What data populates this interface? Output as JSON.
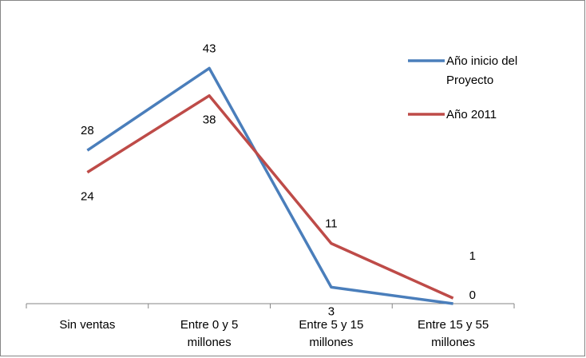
{
  "chart_data": {
    "type": "line",
    "title": "",
    "xlabel": "",
    "ylabel": "",
    "categories": [
      [
        "Sin ventas"
      ],
      [
        "Entre 0 y 5",
        "millones"
      ],
      [
        "Entre 5 y 15",
        "millones"
      ],
      [
        "Entre 15 y 55",
        "millones"
      ]
    ],
    "ylim": [
      0,
      50
    ],
    "grid": false,
    "legend_position": "top-right",
    "series": [
      {
        "name": "Año inicio del Proyecto",
        "legend_lines": [
          "Año inicio del",
          "Proyecto"
        ],
        "color": "#4a7ebb",
        "values": [
          28,
          43,
          3,
          0
        ],
        "label_placement": [
          "above",
          "above",
          "below",
          "above-right"
        ]
      },
      {
        "name": "Año 2011",
        "legend_lines": [
          "Año 2011"
        ],
        "color": "#be4b48",
        "values": [
          24,
          38,
          11,
          1
        ],
        "label_placement": [
          "below",
          "below",
          "above",
          "above-right"
        ]
      }
    ]
  }
}
